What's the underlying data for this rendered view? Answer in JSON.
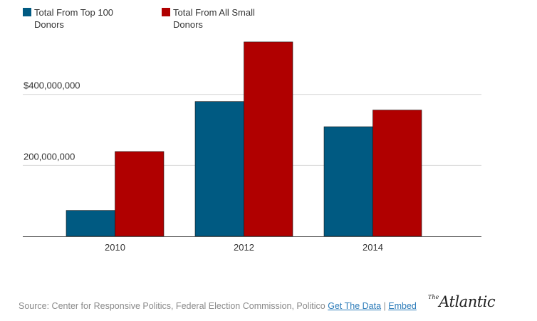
{
  "chart_data": {
    "type": "bar",
    "categories": [
      "2010",
      "2012",
      "2014"
    ],
    "series": [
      {
        "name": "Total From Top 100 Donors",
        "color": "#005a82",
        "values": [
          73000000,
          380000000,
          309000000
        ]
      },
      {
        "name": "Total From All Small Donors",
        "color": "#b00000",
        "values": [
          239000000,
          548000000,
          356000000
        ]
      }
    ],
    "yticks": [
      200000000,
      400000000
    ],
    "ytick_labels": [
      "200,000,000",
      "$400,000,000"
    ],
    "ylim": [
      0,
      600000000
    ],
    "grid": true,
    "legend": "top-left"
  },
  "footer": {
    "source": "Source: Center for Responsive Politics, Federal Election Commission, Politico",
    "get_data_label": "Get The Data",
    "separator": "|",
    "embed_label": "Embed"
  },
  "logo": {
    "the": "The",
    "name": "Atlantic"
  }
}
